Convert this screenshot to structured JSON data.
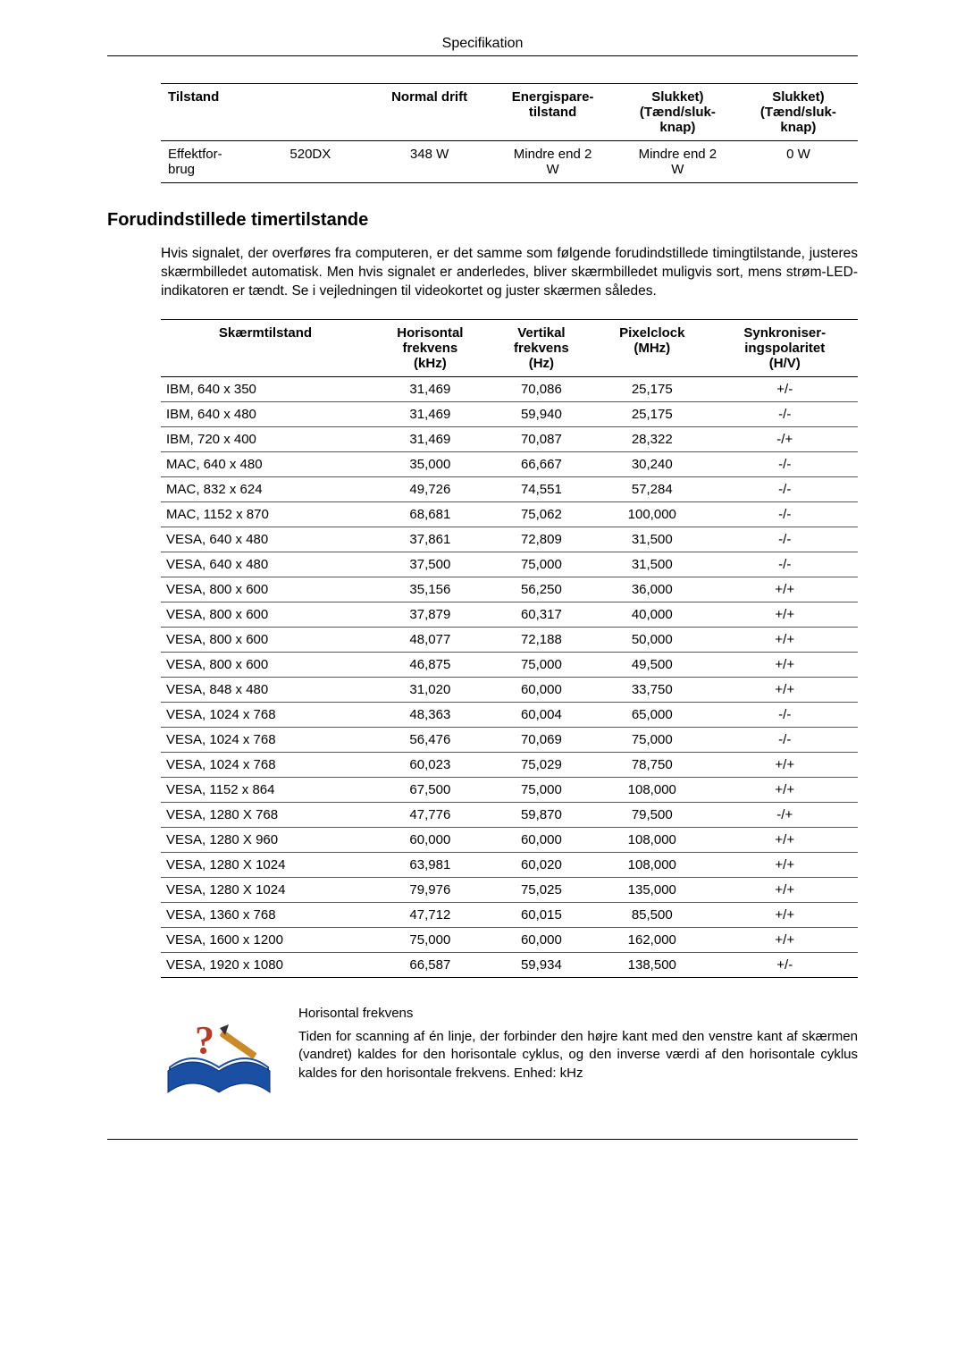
{
  "header": {
    "title": "Specifikation"
  },
  "power_table": {
    "headers": [
      "Tilstand",
      "",
      "Normal drift",
      "Energispare-\ntilstand",
      "Slukket)\n(Tænd/sluk-\nknap)",
      "Slukket)\n(Tænd/sluk-\nknap)"
    ],
    "row": {
      "label_a": "Effektfor-\nbrug",
      "label_b": "520DX",
      "normal": "348 W",
      "save": "Mindre end 2\nW",
      "off1": "Mindre end 2\nW",
      "off2": "0 W"
    }
  },
  "section_heading": "Forudindstillede timertilstande",
  "intro_paragraph": "Hvis signalet, der overføres fra computeren, er det samme som følgende forudindstillede timingtilstande, justeres skærmbilledet automatisk. Men hvis signalet er anderledes, bliver skærmbilledet muligvis sort, mens strøm-LED-indikatoren er tændt. Se i vejledningen til videokortet og juster skærmen således.",
  "timing_table": {
    "headers": [
      "Skærmtilstand",
      "Horisontal\nfrekvens\n(kHz)",
      "Vertikal\nfrekvens\n(Hz)",
      "Pixelclock\n(MHz)",
      "Synkroniser-\ningspolaritet\n(H/V)"
    ],
    "rows": [
      [
        "IBM, 640 x 350",
        "31,469",
        "70,086",
        "25,175",
        "+/-"
      ],
      [
        "IBM, 640 x 480",
        "31,469",
        "59,940",
        "25,175",
        "-/-"
      ],
      [
        "IBM, 720 x 400",
        "31,469",
        "70,087",
        "28,322",
        "-/+"
      ],
      [
        "MAC, 640 x 480",
        "35,000",
        "66,667",
        "30,240",
        "-/-"
      ],
      [
        "MAC, 832 x 624",
        "49,726",
        "74,551",
        "57,284",
        "-/-"
      ],
      [
        "MAC, 1152 x 870",
        "68,681",
        "75,062",
        "100,000",
        "-/-"
      ],
      [
        "VESA, 640 x 480",
        "37,861",
        "72,809",
        "31,500",
        "-/-"
      ],
      [
        "VESA, 640 x 480",
        "37,500",
        "75,000",
        "31,500",
        "-/-"
      ],
      [
        "VESA, 800 x 600",
        "35,156",
        "56,250",
        "36,000",
        "+/+"
      ],
      [
        "VESA, 800 x 600",
        "37,879",
        "60,317",
        "40,000",
        "+/+"
      ],
      [
        "VESA, 800 x 600",
        "48,077",
        "72,188",
        "50,000",
        "+/+"
      ],
      [
        "VESA, 800 x 600",
        "46,875",
        "75,000",
        "49,500",
        "+/+"
      ],
      [
        "VESA, 848 x 480",
        "31,020",
        "60,000",
        "33,750",
        "+/+"
      ],
      [
        "VESA, 1024 x 768",
        "48,363",
        "60,004",
        "65,000",
        "-/-"
      ],
      [
        "VESA, 1024 x 768",
        "56,476",
        "70,069",
        "75,000",
        "-/-"
      ],
      [
        "VESA, 1024 x 768",
        "60,023",
        "75,029",
        "78,750",
        "+/+"
      ],
      [
        "VESA, 1152 x 864",
        "67,500",
        "75,000",
        "108,000",
        "+/+"
      ],
      [
        "VESA, 1280 X 768",
        "47,776",
        "59,870",
        "79,500",
        "-/+"
      ],
      [
        "VESA, 1280 X 960",
        "60,000",
        "60,000",
        "108,000",
        "+/+"
      ],
      [
        "VESA, 1280 X 1024",
        "63,981",
        "60,020",
        "108,000",
        "+/+"
      ],
      [
        "VESA, 1280 X 1024",
        "79,976",
        "75,025",
        "135,000",
        "+/+"
      ],
      [
        "VESA, 1360 x 768",
        "47,712",
        "60,015",
        "85,500",
        "+/+"
      ],
      [
        "VESA, 1600 x 1200",
        "75,000",
        "60,000",
        "162,000",
        "+/+"
      ],
      [
        "VESA, 1920 x 1080",
        "66,587",
        "59,934",
        "138,500",
        "+/-"
      ]
    ]
  },
  "footnote": {
    "title": "Horisontal frekvens",
    "body": "Tiden for scanning af én linje, der forbinder den højre kant med den venstre kant af skærmen (vandret) kaldes for den horisontale cyklus, og den inverse værdi af den horisontale cyklus kaldes for den horisontale frekvens. Enhed: kHz"
  },
  "icon_colors": {
    "book_fill": "#1a4fa3",
    "accent": "#c98a2a",
    "qmark": "#b23d28"
  }
}
